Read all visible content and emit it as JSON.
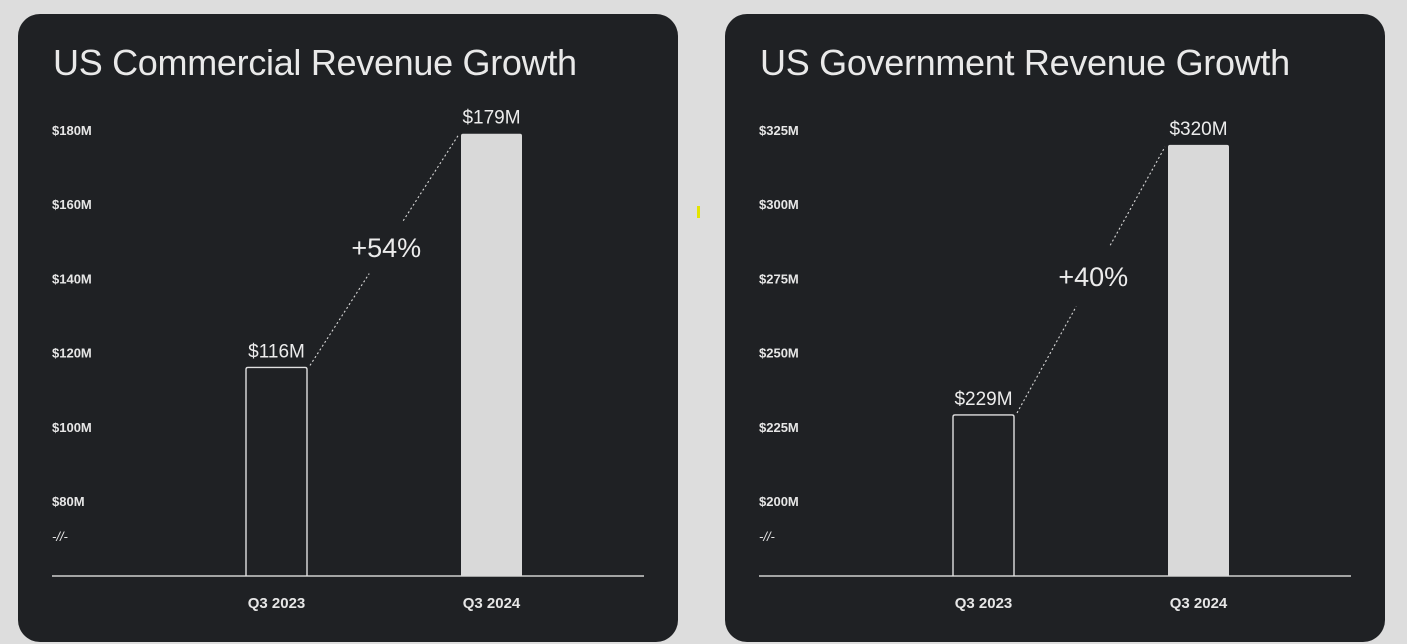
{
  "chart_data": [
    {
      "type": "bar",
      "title": "US Commercial Revenue Growth",
      "categories": [
        "Q3 2023",
        "Q3 2024"
      ],
      "values": [
        116,
        179
      ],
      "value_labels": [
        "$116M",
        "$179M"
      ],
      "bar_styles": [
        "outline",
        "filled"
      ],
      "growth_label": "+54%",
      "yticks": [
        80,
        100,
        120,
        140,
        160,
        180
      ],
      "ytick_labels": [
        "$80M",
        "$100M",
        "$120M",
        "$140M",
        "$160M",
        "$180M"
      ],
      "axis_break_label": "-//-",
      "ylim": [
        80,
        180
      ],
      "units": "millions USD",
      "xlabel": "",
      "ylabel": ""
    },
    {
      "type": "bar",
      "title": "US Government Revenue Growth",
      "categories": [
        "Q3 2023",
        "Q3 2024"
      ],
      "values": [
        229,
        320
      ],
      "value_labels": [
        "$229M",
        "$320M"
      ],
      "bar_styles": [
        "outline",
        "filled"
      ],
      "growth_label": "+40%",
      "yticks": [
        200,
        225,
        250,
        275,
        300,
        325
      ],
      "ytick_labels": [
        "$200M",
        "$225M",
        "$250M",
        "$275M",
        "$300M",
        "$325M"
      ],
      "axis_break_label": "-//-",
      "ylim": [
        200,
        325
      ],
      "units": "millions USD",
      "xlabel": "",
      "ylabel": ""
    }
  ],
  "colors": {
    "page_background": "#dddddd",
    "panel_background": "#1f2124",
    "bar_fill": "#d9d9d9",
    "text": "#e6e6e6",
    "marker": "#e4e400"
  }
}
